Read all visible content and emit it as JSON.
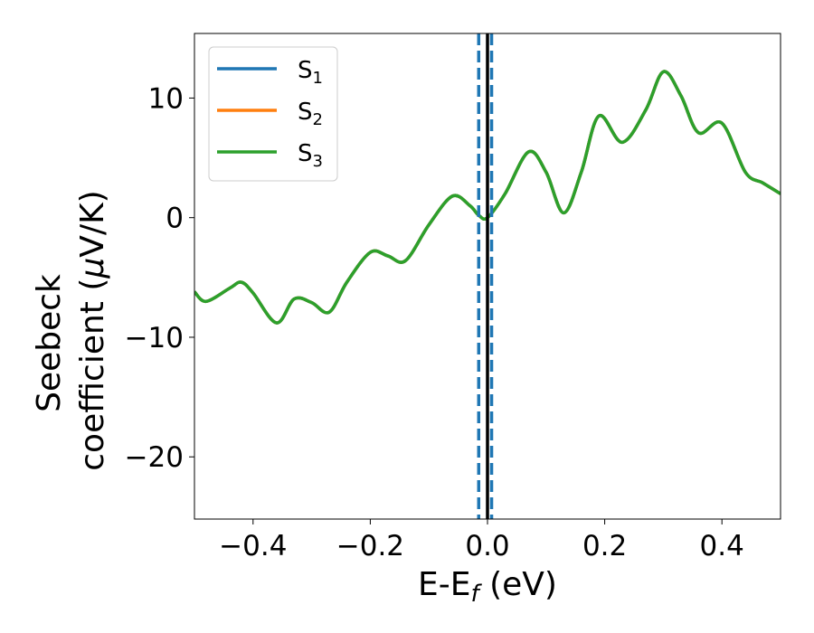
{
  "chart_data": {
    "type": "line",
    "xlabel": {
      "main": "E-E",
      "sub": "f",
      "suffix": " (eV)"
    },
    "ylabel": {
      "line1": "Seebeck",
      "line2_prefix": "coefficient  (",
      "line2_mu": "μ",
      "line2_suffix": "V/K)"
    },
    "xlim": [
      -0.5,
      0.5
    ],
    "ylim": [
      -25.2,
      15.4
    ],
    "xticks": [
      -0.4,
      -0.2,
      0.0,
      0.2,
      0.4
    ],
    "xtick_labels": [
      "−0.4",
      "−0.2",
      "0.0",
      "0.2",
      "0.4"
    ],
    "yticks": [
      10,
      0,
      -10,
      -20
    ],
    "ytick_labels": [
      "10",
      "0",
      "−10",
      "−20"
    ],
    "grid": false,
    "legend_position": "top-left",
    "series": [
      {
        "name": "S",
        "subscript": "1",
        "color": "#1f77b4",
        "x": [
          -0.5,
          -0.48,
          -0.44,
          -0.42,
          -0.4,
          -0.36,
          -0.33,
          -0.3,
          -0.27,
          -0.24,
          -0.2,
          -0.17,
          -0.14,
          -0.1,
          -0.06,
          -0.03,
          -0.015,
          0.0,
          0.03,
          0.07,
          0.1,
          0.13,
          0.16,
          0.19,
          0.23,
          0.27,
          0.3,
          0.33,
          0.36,
          0.4,
          0.44,
          0.47,
          0.5
        ],
        "y": [
          -6.2,
          -7.0,
          -5.9,
          -5.4,
          -6.3,
          -8.8,
          -6.8,
          -7.1,
          -7.9,
          -5.4,
          -2.9,
          -3.2,
          -3.6,
          -0.6,
          1.8,
          1.0,
          0.2,
          0.0,
          2.0,
          5.5,
          3.8,
          0.4,
          3.8,
          8.5,
          6.3,
          9.0,
          12.2,
          10.2,
          7.1,
          7.9,
          3.8,
          2.9,
          2.0
        ]
      },
      {
        "name": "S",
        "subscript": "2",
        "color": "#ff7f0e",
        "x": [
          -0.5,
          -0.48,
          -0.44,
          -0.42,
          -0.4,
          -0.36,
          -0.33,
          -0.3,
          -0.27,
          -0.24,
          -0.2,
          -0.17,
          -0.14,
          -0.1,
          -0.06,
          -0.03,
          -0.015,
          0.0,
          0.03,
          0.07,
          0.1,
          0.13,
          0.16,
          0.19,
          0.23,
          0.27,
          0.3,
          0.33,
          0.36,
          0.4,
          0.44,
          0.47,
          0.5
        ],
        "y": [
          -6.2,
          -7.0,
          -5.9,
          -5.4,
          -6.3,
          -8.8,
          -6.8,
          -7.1,
          -7.9,
          -5.4,
          -2.9,
          -3.2,
          -3.6,
          -0.6,
          1.8,
          1.0,
          0.2,
          0.0,
          2.0,
          5.5,
          3.8,
          0.4,
          3.8,
          8.5,
          6.3,
          9.0,
          12.2,
          10.2,
          7.1,
          7.9,
          3.8,
          2.9,
          2.0
        ]
      },
      {
        "name": "S",
        "subscript": "3",
        "color": "#2ca02c",
        "x": [
          -0.5,
          -0.48,
          -0.44,
          -0.42,
          -0.4,
          -0.36,
          -0.33,
          -0.3,
          -0.27,
          -0.24,
          -0.2,
          -0.17,
          -0.14,
          -0.1,
          -0.06,
          -0.03,
          -0.015,
          0.0,
          0.03,
          0.07,
          0.1,
          0.13,
          0.16,
          0.19,
          0.23,
          0.27,
          0.3,
          0.33,
          0.36,
          0.4,
          0.44,
          0.47,
          0.5
        ],
        "y": [
          -6.2,
          -7.0,
          -5.9,
          -5.4,
          -6.3,
          -8.8,
          -6.8,
          -7.1,
          -7.9,
          -5.4,
          -2.9,
          -3.2,
          -3.6,
          -0.6,
          1.8,
          1.0,
          0.2,
          0.0,
          2.0,
          5.5,
          3.8,
          0.4,
          3.8,
          8.5,
          6.3,
          9.0,
          12.2,
          10.2,
          7.1,
          7.9,
          3.8,
          2.9,
          2.0
        ]
      }
    ],
    "vertical_lines": [
      {
        "x": -0.015,
        "color": "#1f77b4",
        "style": "dashed"
      },
      {
        "x": 0.007,
        "color": "#1f77b4",
        "style": "dashed"
      },
      {
        "x": 0.0,
        "color": "#000000",
        "style": "solid"
      }
    ]
  }
}
